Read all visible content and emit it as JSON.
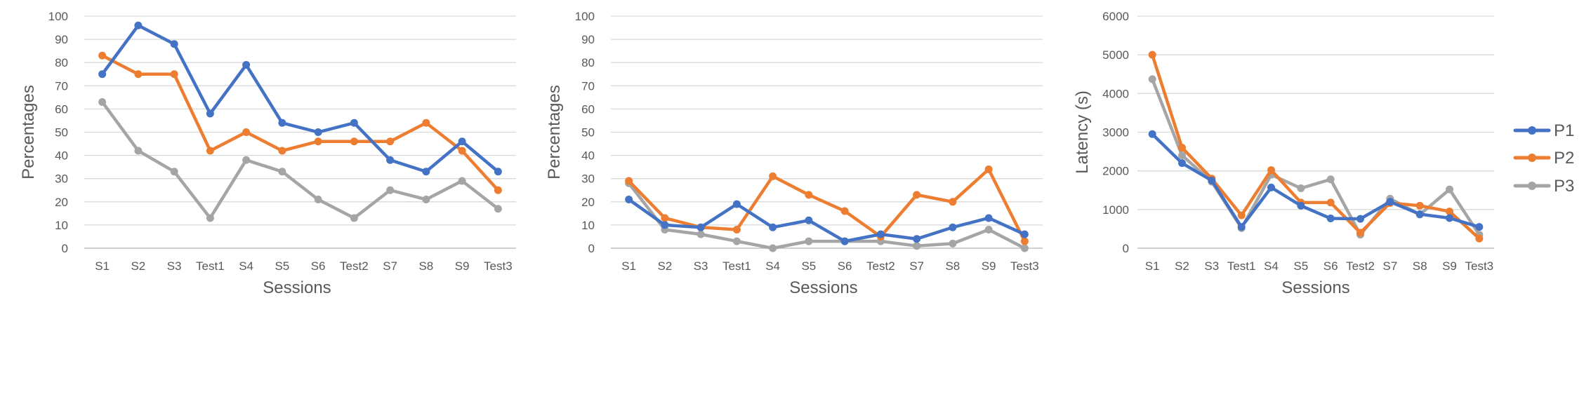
{
  "colors": {
    "P1": "#4472c4",
    "P2": "#ed7d31",
    "P3": "#a5a5a5"
  },
  "legend": [
    {
      "name": "P1",
      "color": "#4472c4"
    },
    {
      "name": "P2",
      "color": "#ed7d31"
    },
    {
      "name": "P3",
      "color": "#a5a5a5"
    }
  ],
  "chart_data": [
    {
      "type": "line",
      "title": "",
      "xlabel": "Sessions",
      "ylabel": "Percentages",
      "categories": [
        "S1",
        "S2",
        "S3",
        "Test1",
        "S4",
        "S5",
        "S6",
        "Test2",
        "S7",
        "S8",
        "S9",
        "Test3"
      ],
      "ylim": [
        0,
        100
      ],
      "yticks": [
        "0",
        "10",
        "20",
        "30",
        "40",
        "50",
        "60",
        "70",
        "80",
        "90",
        "100"
      ],
      "grid": true,
      "series": [
        {
          "name": "P1",
          "values": [
            75,
            96,
            88,
            58,
            79,
            54,
            50,
            54,
            38,
            33,
            46,
            33
          ]
        },
        {
          "name": "P2",
          "values": [
            83,
            75,
            75,
            42,
            50,
            42,
            46,
            46,
            46,
            54,
            42,
            25
          ]
        },
        {
          "name": "P3",
          "values": [
            63,
            42,
            33,
            13,
            38,
            33,
            21,
            13,
            25,
            21,
            29,
            17
          ]
        }
      ]
    },
    {
      "type": "line",
      "title": "",
      "xlabel": "Sessions",
      "ylabel": "Percentages",
      "categories": [
        "S1",
        "S2",
        "S3",
        "Test1",
        "S4",
        "S5",
        "S6",
        "Test2",
        "S7",
        "S8",
        "S9",
        "Test3"
      ],
      "ylim": [
        0,
        100
      ],
      "yticks": [
        "0",
        "10",
        "20",
        "30",
        "40",
        "50",
        "60",
        "70",
        "80",
        "90",
        "100"
      ],
      "grid": true,
      "series": [
        {
          "name": "P1",
          "values": [
            21,
            10,
            9,
            19,
            9,
            12,
            3,
            6,
            4,
            9,
            13,
            6
          ]
        },
        {
          "name": "P2",
          "values": [
            29,
            13,
            9,
            8,
            31,
            23,
            16,
            5,
            23,
            20,
            34,
            3
          ]
        },
        {
          "name": "P3",
          "values": [
            28,
            8,
            6,
            3,
            0,
            3,
            3,
            3,
            1,
            2,
            8,
            0
          ]
        }
      ]
    },
    {
      "type": "line",
      "title": "",
      "xlabel": "Sessions",
      "ylabel": "Latency (s)",
      "categories": [
        "S1",
        "S2",
        "S3",
        "Test1",
        "S4",
        "S5",
        "S6",
        "Test2",
        "S7",
        "S8",
        "S9",
        "Test3"
      ],
      "ylim": [
        0,
        6000
      ],
      "yticks": [
        "0",
        "1000",
        "2000",
        "3000",
        "4000",
        "5000",
        "6000"
      ],
      "grid": true,
      "series": [
        {
          "name": "P1",
          "values": [
            2950,
            2200,
            1750,
            550,
            1570,
            1100,
            770,
            760,
            1200,
            880,
            780,
            550
          ]
        },
        {
          "name": "P2",
          "values": [
            5000,
            2600,
            1800,
            850,
            2020,
            1180,
            1180,
            400,
            1170,
            1100,
            950,
            250
          ]
        },
        {
          "name": "P3",
          "values": [
            4370,
            2400,
            1720,
            520,
            1900,
            1550,
            1780,
            350,
            1280,
            870,
            1520,
            350
          ]
        }
      ]
    }
  ]
}
